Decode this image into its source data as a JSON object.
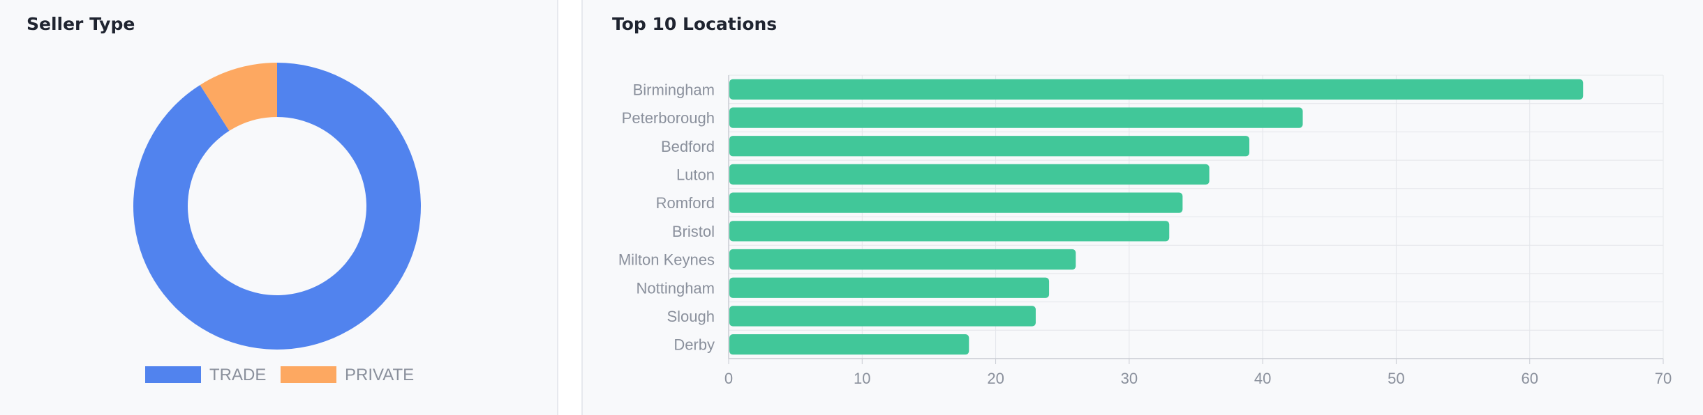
{
  "seller_panel": {
    "title": "Seller Type"
  },
  "locations_panel": {
    "title": "Top 10 Locations"
  },
  "chart_data": [
    {
      "type": "pie",
      "variant": "doughnut",
      "title": "Seller Type",
      "categories": [
        "TRADE",
        "PRIVATE"
      ],
      "values": [
        91,
        9
      ],
      "colors": [
        "#5183ee",
        "#fda861"
      ],
      "legend": "bottom"
    },
    {
      "type": "bar",
      "orientation": "horizontal",
      "title": "Top 10 Locations",
      "categories": [
        "Birmingham",
        "Peterborough",
        "Bedford",
        "Luton",
        "Romford",
        "Bristol",
        "Milton Keynes",
        "Nottingham",
        "Slough",
        "Derby"
      ],
      "values": [
        64,
        43,
        39,
        36,
        34,
        33,
        26,
        24,
        23,
        18
      ],
      "xlim": [
        0,
        70
      ],
      "xticks": [
        "0",
        "10",
        "20",
        "30",
        "40",
        "50",
        "60",
        "70"
      ],
      "grid": true,
      "color": "#41c799"
    }
  ]
}
